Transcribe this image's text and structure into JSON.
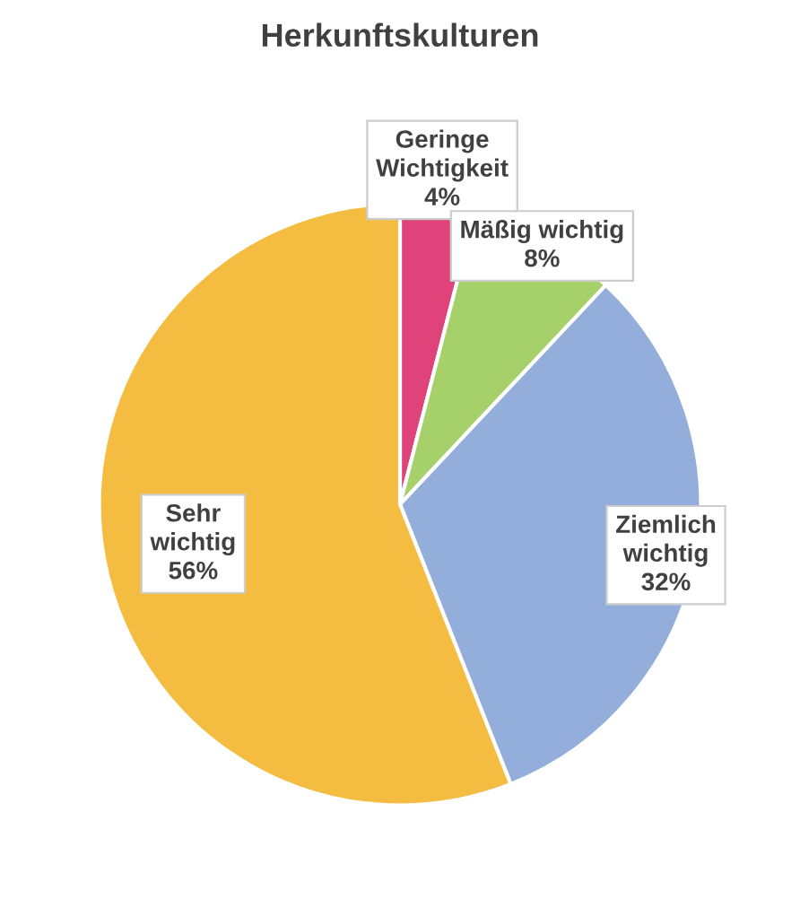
{
  "chart_data": {
    "type": "pie",
    "title": "Herkunftskulturen",
    "categories": [
      "Geringe\nWichtigkeit",
      "Mäßig wichtig",
      "Ziemlich\nwichtig",
      "Sehr\nwichtig"
    ],
    "values": [
      4,
      8,
      32,
      56
    ],
    "colors": [
      "#e0427a",
      "#a5d06a",
      "#94aedc",
      "#f4bd42"
    ],
    "value_labels": [
      "4%",
      "8%",
      "32%",
      "56%"
    ]
  }
}
